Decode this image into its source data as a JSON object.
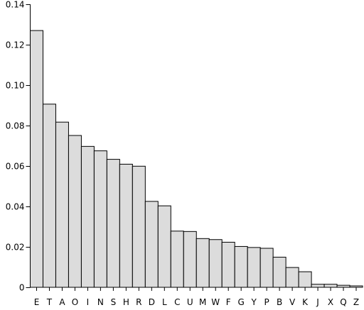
{
  "chart_data": {
    "type": "bar",
    "categories": [
      "E",
      "T",
      "A",
      "O",
      "I",
      "N",
      "S",
      "H",
      "R",
      "D",
      "L",
      "C",
      "U",
      "M",
      "W",
      "F",
      "G",
      "Y",
      "P",
      "B",
      "V",
      "K",
      "J",
      "X",
      "Q",
      "Z"
    ],
    "values": [
      0.127,
      0.0906,
      0.0817,
      0.0751,
      0.0697,
      0.0675,
      0.0633,
      0.0609,
      0.0599,
      0.0425,
      0.0403,
      0.0278,
      0.0276,
      0.0241,
      0.0236,
      0.0223,
      0.0202,
      0.0197,
      0.0193,
      0.0149,
      0.0098,
      0.0077,
      0.0015,
      0.0015,
      0.001,
      0.0007
    ],
    "yticks": [
      "0",
      "0.02",
      "0.04",
      "0.06",
      "0.08",
      "0.10",
      "0.12",
      "0.14"
    ],
    "ylim": [
      0,
      0.14
    ],
    "grid": false,
    "colors": {
      "bar_fill": "#dcdcdc",
      "bar_stroke": "#000000",
      "axis": "#000000"
    }
  }
}
